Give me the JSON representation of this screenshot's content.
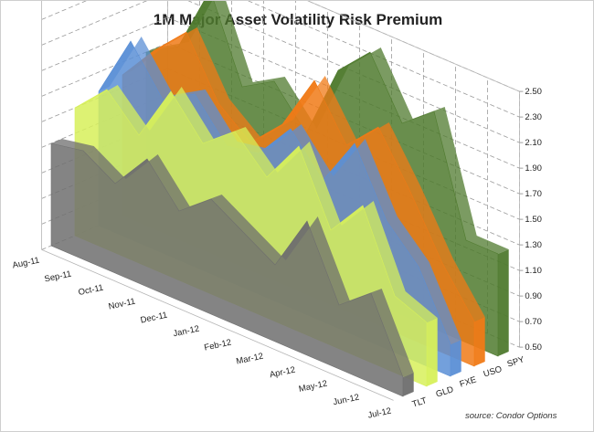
{
  "chart_data": {
    "type": "area",
    "title": "1M Major Asset Volatility Risk Premium",
    "source": "source: Condor Options",
    "x_ticks": [
      "Aug-11",
      "Sep-11",
      "Oct-11",
      "Nov-11",
      "Dec-11",
      "Jan-12",
      "Feb-12",
      "Mar-12",
      "Apr-12",
      "May-12",
      "Jun-12",
      "Jul-12"
    ],
    "y_ticks": [
      "2.50",
      "2.30",
      "2.10",
      "1.90",
      "1.70",
      "1.50",
      "1.30",
      "1.10",
      "0.90",
      "0.70",
      "0.50"
    ],
    "ylim": [
      0.5,
      2.5
    ],
    "categories": [
      "Aug-11",
      "Sep-11",
      "Oct-11",
      "Nov-11",
      "Dec-11",
      "Jan-12",
      "Feb-12",
      "Mar-12",
      "Apr-12",
      "May-12",
      "Jun-12",
      "Jul-12"
    ],
    "series": [
      {
        "name": "TLT",
        "color": "#6e6e6e",
        "values": [
          1.3,
          1.35,
          1.2,
          1.5,
          1.2,
          1.4,
          1.25,
          1.1,
          1.55,
          1.0,
          1.2,
          0.65
        ]
      },
      {
        "name": "GLD",
        "color": "#d7f05a",
        "values": [
          1.5,
          1.75,
          1.5,
          1.95,
          1.65,
          1.85,
          1.6,
          1.95,
          1.4,
          1.7,
          1.1,
          1.0
        ]
      },
      {
        "name": "FXE",
        "color": "#5b8fd6",
        "values": [
          1.55,
          2.05,
          1.7,
          1.85,
          1.55,
          1.6,
          1.9,
          1.6,
          2.0,
          1.5,
          1.25,
          0.75
        ]
      },
      {
        "name": "USO",
        "color": "#f07a16",
        "values": [
          1.6,
          1.9,
          2.15,
          1.7,
          1.5,
          1.75,
          2.2,
          1.8,
          2.05,
          1.65,
          1.2,
          0.85
        ]
      },
      {
        "name": "SPY",
        "color": "#4f7a2e",
        "values": [
          1.7,
          1.85,
          2.4,
          1.75,
          1.9,
          1.6,
          2.2,
          2.45,
          2.0,
          2.2,
          1.3,
          1.3
        ]
      }
    ]
  }
}
